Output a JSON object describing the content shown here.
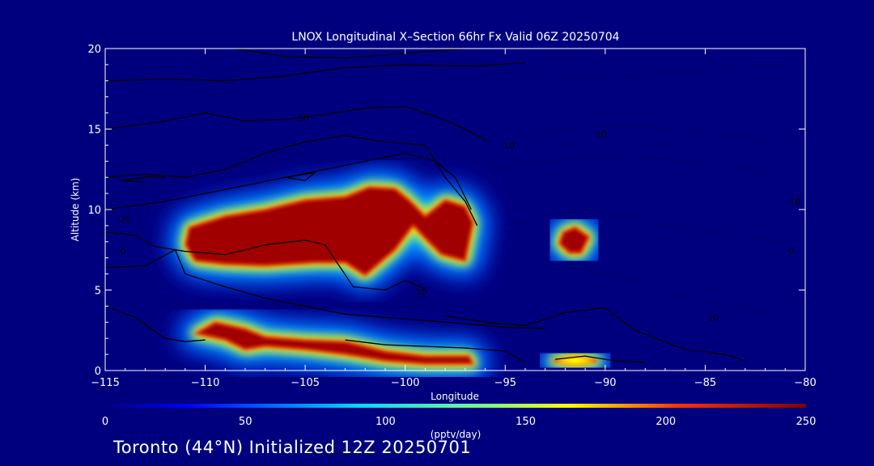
{
  "chart_data": {
    "type": "heatmap",
    "title": "LNOX Longitudinal X–Section 66hr  Fx Valid 06Z 20250704",
    "xlabel": "Longitude",
    "ylabel": "Altitude (km)",
    "xlim": [
      -115,
      -80
    ],
    "ylim": [
      0,
      20
    ],
    "x_ticks": [
      "−115",
      "−110",
      "−105",
      "−100",
      "−95",
      "−90",
      "−85",
      "−80"
    ],
    "x_tick_values": [
      -115,
      -110,
      -105,
      -100,
      -95,
      -90,
      -85,
      -80
    ],
    "y_ticks": [
      "0",
      "5",
      "10",
      "15",
      "20"
    ],
    "y_tick_values": [
      0,
      5,
      10,
      15,
      20
    ],
    "colorbar": {
      "label": "(pptv/day)",
      "range": [
        0,
        250
      ],
      "ticks": [
        "0",
        "50",
        "100",
        "150",
        "200",
        "250"
      ],
      "tick_values": [
        0,
        50,
        100,
        150,
        200,
        250
      ]
    },
    "regions": [
      {
        "name": "upper-plume",
        "value": 250,
        "outline": [
          [
            -110.8,
            8.9
          ],
          [
            -109,
            9.6
          ],
          [
            -107,
            10
          ],
          [
            -105,
            10.6
          ],
          [
            -103,
            10.8
          ],
          [
            -101.8,
            11.4
          ],
          [
            -100.5,
            11.3
          ],
          [
            -99.8,
            10.6
          ],
          [
            -99,
            9.6
          ],
          [
            -98,
            10.6
          ],
          [
            -97,
            10.2
          ],
          [
            -96.6,
            9.2
          ],
          [
            -97,
            6.8
          ],
          [
            -98.2,
            7.2
          ],
          [
            -99,
            8.2
          ],
          [
            -99.6,
            9
          ],
          [
            -100.5,
            7.5
          ],
          [
            -102,
            5.9
          ],
          [
            -103,
            6.7
          ],
          [
            -104.5,
            6.7
          ],
          [
            -107,
            6.5
          ],
          [
            -109,
            6.6
          ],
          [
            -110.5,
            6.8
          ],
          [
            -111,
            7.8
          ]
        ]
      },
      {
        "name": "lower-layer",
        "value": 250,
        "outline": [
          [
            -110.5,
            2.3
          ],
          [
            -109.5,
            3
          ],
          [
            -108,
            2.6
          ],
          [
            -107,
            2.1
          ],
          [
            -105,
            1.9
          ],
          [
            -103,
            1.8
          ],
          [
            -101,
            1.2
          ],
          [
            -99,
            0.9
          ],
          [
            -96.8,
            0.9
          ],
          [
            -96.6,
            0.4
          ],
          [
            -99,
            0.4
          ],
          [
            -101,
            0.6
          ],
          [
            -103,
            1
          ],
          [
            -105,
            1.3
          ],
          [
            -107,
            1.5
          ],
          [
            -108,
            1.3
          ],
          [
            -109,
            1.9
          ]
        ]
      },
      {
        "name": "isolated-core",
        "value": 230,
        "outline": [
          [
            -92.1,
            8.6
          ],
          [
            -91.5,
            8.9
          ],
          [
            -90.8,
            8.3
          ],
          [
            -91.2,
            7.3
          ],
          [
            -91.8,
            7.3
          ],
          [
            -92.3,
            7.9
          ]
        ]
      },
      {
        "name": "surface-spot",
        "value": 170,
        "outline": [
          [
            -92.6,
            0.6
          ],
          [
            -91.5,
            0.9
          ],
          [
            -90.4,
            0.6
          ],
          [
            -91.5,
            0.35
          ]
        ]
      }
    ],
    "contour_labels": [
      {
        "text": "10",
        "x": -105.1,
        "y": 15.5
      },
      {
        "text": "20",
        "x": -90.2,
        "y": 14.5
      },
      {
        "text": "10",
        "x": -94.8,
        "y": 13.8
      },
      {
        "text": "10",
        "x": -99.2,
        "y": 4.7
      },
      {
        "text": "20",
        "x": -114,
        "y": 9.2
      },
      {
        "text": "0",
        "x": -114.1,
        "y": 7.2
      },
      {
        "text": "10",
        "x": -84.6,
        "y": 3.1
      },
      {
        "text": "10",
        "x": -80.5,
        "y": 10.3
      },
      {
        "text": "0",
        "x": -80.7,
        "y": 7.2
      }
    ]
  },
  "footer": "Toronto (44°N) Initialized 12Z 20250701"
}
